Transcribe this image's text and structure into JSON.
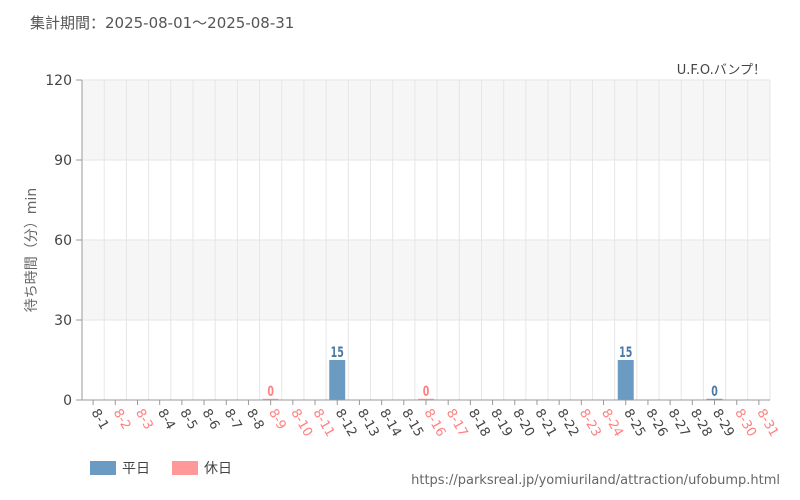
{
  "header": {
    "period": "集計期間：2025-08-01～2025-08-31"
  },
  "chart_data": {
    "type": "bar",
    "title": "U.F.O.バンプ！",
    "ylabel": "待ち時間（分）min",
    "ylim": [
      0,
      120
    ],
    "yticks": [
      0,
      30,
      60,
      90,
      120
    ],
    "categories": [
      "8-1",
      "8-2",
      "8-3",
      "8-4",
      "8-5",
      "8-6",
      "8-7",
      "8-8",
      "8-9",
      "8-10",
      "8-11",
      "8-12",
      "8-13",
      "8-14",
      "8-15",
      "8-16",
      "8-17",
      "8-18",
      "8-19",
      "8-20",
      "8-21",
      "8-22",
      "8-23",
      "8-24",
      "8-25",
      "8-26",
      "8-27",
      "8-28",
      "8-29",
      "8-30",
      "8-31"
    ],
    "holiday": [
      false,
      true,
      true,
      false,
      false,
      false,
      false,
      false,
      true,
      true,
      true,
      false,
      false,
      false,
      false,
      true,
      true,
      false,
      false,
      false,
      false,
      false,
      true,
      true,
      false,
      false,
      false,
      false,
      false,
      true,
      true
    ],
    "values": [
      null,
      null,
      null,
      null,
      null,
      null,
      null,
      null,
      0,
      null,
      null,
      15,
      null,
      null,
      null,
      0,
      null,
      null,
      null,
      null,
      null,
      null,
      null,
      null,
      15,
      null,
      null,
      null,
      0,
      null,
      null
    ],
    "series": [
      {
        "name": "平日",
        "color": "#6b9bc3"
      },
      {
        "name": "休日",
        "color": "#ff9999"
      }
    ],
    "grid": true,
    "legend_position": "bottom-left"
  },
  "colors": {
    "weekday_bar": "#6b9bc3",
    "holiday_bar": "#ff9999",
    "weekday_label": "#4a7aa3",
    "holiday_label": "#ff8080",
    "weekday_tick": "#444444",
    "holiday_tick": "#ff8080"
  },
  "footer": {
    "source": "https://parksreal.jp/yomiuriland/attraction/ufobump.html"
  }
}
